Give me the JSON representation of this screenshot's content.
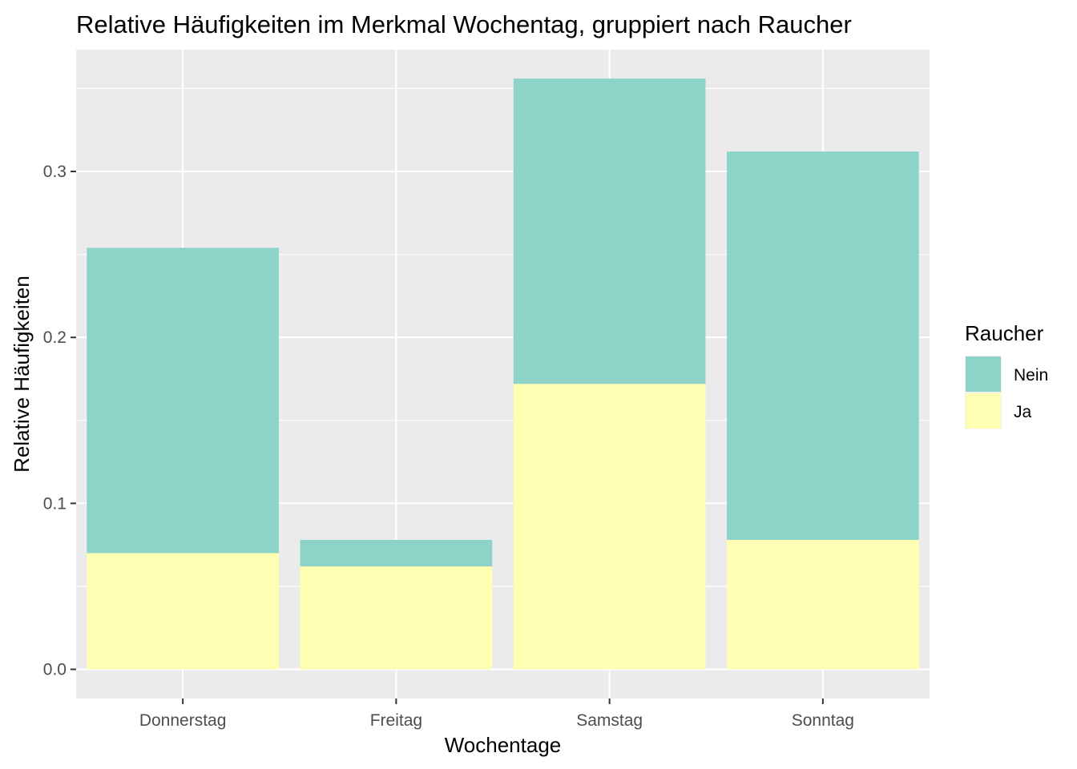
{
  "chart_data": {
    "type": "bar",
    "stacked": true,
    "title": "Relative Häufigkeiten im Merkmal Wochentag, gruppiert nach Raucher",
    "xlabel": "Wochentage",
    "ylabel": "Relative Häufigkeiten",
    "categories": [
      "Donnerstag",
      "Freitag",
      "Samstag",
      "Sonntag"
    ],
    "series": [
      {
        "name": "Ja",
        "color": "#FFFFB3",
        "values": [
          0.07,
          0.062,
          0.172,
          0.078
        ]
      },
      {
        "name": "Nein",
        "color": "#8DD3C7",
        "values": [
          0.184,
          0.016,
          0.184,
          0.234
        ]
      }
    ],
    "ylim": [
      -0.0176,
      0.3734
    ],
    "yticks": [
      0.0,
      0.1,
      0.2,
      0.3
    ],
    "ytick_labels": [
      "0.0",
      "0.1",
      "0.2",
      "0.3"
    ],
    "grid": true,
    "legend": {
      "title": "Raucher",
      "position": "right",
      "entries": [
        "Nein",
        "Ja"
      ]
    }
  }
}
